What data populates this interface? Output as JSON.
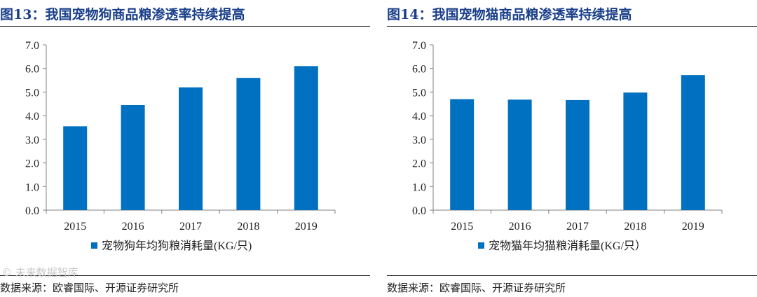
{
  "watermark": "© 未来数据智库",
  "chart_data": [
    {
      "type": "bar",
      "title": "图13：我国宠物狗商品粮渗透率持续提高",
      "categories": [
        "2015",
        "2016",
        "2017",
        "2018",
        "2019"
      ],
      "values": [
        3.55,
        4.45,
        5.2,
        5.6,
        6.1
      ],
      "yticks": [
        "0.0",
        "1.0",
        "2.0",
        "3.0",
        "4.0",
        "5.0",
        "6.0",
        "7.0"
      ],
      "ylim": [
        0,
        7
      ],
      "legend": "宠物狗年均狗粮消耗量(KG/只)",
      "source": "数据来源：欧睿国际、开源证券研究所",
      "color": "#0070c0"
    },
    {
      "type": "bar",
      "title": "图14：我国宠物猫商品粮渗透率持续提高",
      "categories": [
        "2015",
        "2016",
        "2017",
        "2018",
        "2019"
      ],
      "values": [
        4.7,
        4.68,
        4.66,
        4.98,
        5.72
      ],
      "yticks": [
        "0.0",
        "1.0",
        "2.0",
        "3.0",
        "4.0",
        "5.0",
        "6.0",
        "7.0"
      ],
      "ylim": [
        0,
        7
      ],
      "legend": "宠物猫年均猫粮消耗量(KG/只）",
      "source": "数据来源：欧睿国际、开源证券研究所",
      "color": "#0070c0"
    }
  ]
}
